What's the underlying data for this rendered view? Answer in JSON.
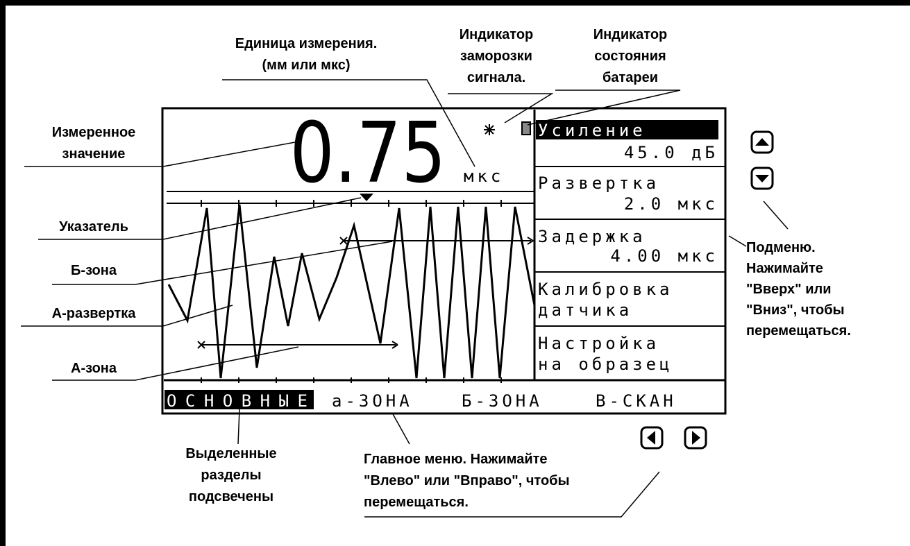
{
  "screen": {
    "value": "0.75",
    "unit": "мкс",
    "submenu": [
      [
        "Усиление",
        "45.0 дБ"
      ],
      [
        "Развертка",
        "2.0 мкс"
      ],
      [
        "Задержка",
        "4.00 мкс"
      ],
      [
        "Калибровка",
        "датчика"
      ],
      [
        "Настройка",
        "на образец"
      ]
    ],
    "main_menu": [
      "ОСНОВНЫЕ",
      "а-ЗОНА",
      "Б-ЗОНА",
      "В-СКАН"
    ]
  },
  "callouts": [
    {
      "lines": [
        "Единица измерения.",
        "(мм или мкс)"
      ]
    },
    {
      "lines": [
        "Индикатор",
        "заморозки",
        "сигнала."
      ]
    },
    {
      "lines": [
        "Индикатор",
        "состояния",
        "батареи"
      ]
    },
    {
      "lines": [
        "Измеренное",
        "значение"
      ]
    },
    {
      "lines": [
        "Указатель"
      ]
    },
    {
      "lines": [
        "Б-зона"
      ]
    },
    {
      "lines": [
        "А-развертка"
      ]
    },
    {
      "lines": [
        "А-зона"
      ]
    },
    {
      "lines": [
        "Выделенные",
        "разделы",
        "подсвечены"
      ]
    },
    {
      "lines": [
        "Главное меню. Нажимайте",
        "\"Влево\" или \"Вправо\", чтобы",
        "перемещаться."
      ]
    },
    {
      "lines": [
        "Подменю.",
        "Нажимайте",
        "\"Вверх\" или",
        "\"Вниз\", чтобы",
        "перемещаться."
      ]
    }
  ]
}
